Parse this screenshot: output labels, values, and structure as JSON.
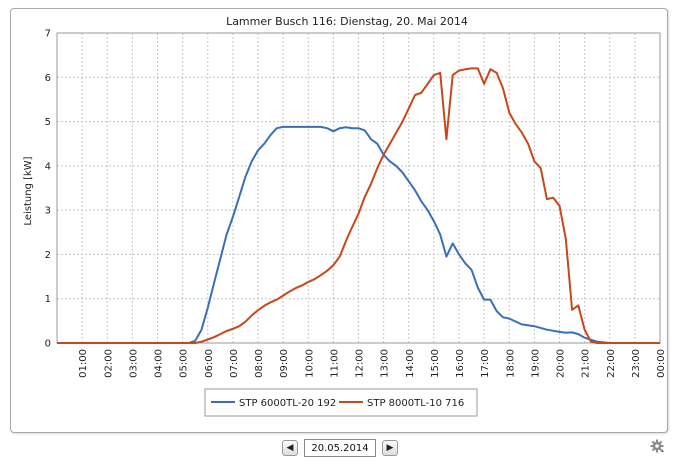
{
  "chart_data": {
    "type": "line",
    "title": "Lammer Busch 116: Dienstag, 20. Mai 2014",
    "ylabel": "Leistung [kW]",
    "xlabel": "",
    "ylim": [
      0,
      7
    ],
    "yticks": [
      "0",
      "1",
      "2",
      "3",
      "4",
      "5",
      "6",
      "7"
    ],
    "xticks": [
      "01:00",
      "02:00",
      "03:00",
      "04:00",
      "05:00",
      "06:00",
      "07:00",
      "08:00",
      "09:00",
      "10:00",
      "11:00",
      "12:00",
      "13:00",
      "14:00",
      "15:00",
      "16:00",
      "17:00",
      "18:00",
      "19:00",
      "20:00",
      "21:00",
      "22:00",
      "23:00",
      "00:00"
    ],
    "x_range_hours": [
      0,
      24
    ],
    "grid": true,
    "legend_position": "bottom",
    "series": [
      {
        "name": "STP 6000TL-20 192",
        "color": "#3a6fb8",
        "x": [
          0,
          5.25,
          5.5,
          5.75,
          6,
          6.25,
          6.5,
          6.75,
          7,
          7.25,
          7.5,
          7.75,
          8,
          8.25,
          8.5,
          8.75,
          9,
          9.5,
          10,
          10.5,
          10.75,
          11,
          11.25,
          11.5,
          11.75,
          12,
          12.25,
          12.5,
          12.75,
          13,
          13.25,
          13.5,
          13.75,
          14,
          14.25,
          14.5,
          14.75,
          15,
          15.25,
          15.5,
          15.75,
          16,
          16.25,
          16.5,
          16.75,
          17,
          17.25,
          17.5,
          17.75,
          18,
          18.5,
          19,
          19.5,
          20,
          20.25,
          20.5,
          20.75,
          21,
          21.5,
          22,
          23,
          24
        ],
        "y": [
          0,
          0,
          0.05,
          0.3,
          0.8,
          1.35,
          1.9,
          2.45,
          2.85,
          3.3,
          3.75,
          4.1,
          4.35,
          4.5,
          4.7,
          4.85,
          4.88,
          4.88,
          4.88,
          4.88,
          4.85,
          4.78,
          4.85,
          4.87,
          4.85,
          4.85,
          4.8,
          4.6,
          4.5,
          4.25,
          4.1,
          4.0,
          3.85,
          3.65,
          3.45,
          3.2,
          3.0,
          2.75,
          2.45,
          1.95,
          2.25,
          2.0,
          1.8,
          1.65,
          1.25,
          0.98,
          0.98,
          0.72,
          0.58,
          0.55,
          0.42,
          0.38,
          0.3,
          0.25,
          0.23,
          0.24,
          0.2,
          0.12,
          0.03,
          0,
          0,
          0
        ]
      },
      {
        "name": "STP 8000TL-10 716",
        "color": "#c8471b",
        "x": [
          0,
          5.25,
          5.5,
          5.75,
          6,
          6.25,
          6.5,
          6.75,
          7,
          7.25,
          7.5,
          7.75,
          8,
          8.25,
          8.5,
          8.75,
          9,
          9.25,
          9.5,
          9.75,
          10,
          10.25,
          10.5,
          10.75,
          11,
          11.25,
          11.5,
          11.75,
          12,
          12.25,
          12.5,
          12.75,
          13,
          13.25,
          13.5,
          13.75,
          14,
          14.25,
          14.5,
          14.75,
          15,
          15.25,
          15.5,
          15.75,
          16,
          16.25,
          16.5,
          16.75,
          17,
          17.25,
          17.5,
          17.75,
          18,
          18.25,
          18.5,
          18.75,
          19,
          19.25,
          19.5,
          19.75,
          20,
          20.25,
          20.5,
          20.75,
          21,
          21.25,
          21.5,
          22,
          23,
          24
        ],
        "y": [
          0,
          0,
          0,
          0.03,
          0.08,
          0.13,
          0.2,
          0.27,
          0.32,
          0.38,
          0.48,
          0.62,
          0.74,
          0.84,
          0.92,
          0.98,
          1.07,
          1.16,
          1.24,
          1.3,
          1.38,
          1.44,
          1.53,
          1.63,
          1.76,
          1.95,
          2.3,
          2.62,
          2.92,
          3.3,
          3.6,
          3.95,
          4.25,
          4.5,
          4.75,
          5.0,
          5.3,
          5.6,
          5.65,
          5.85,
          6.05,
          6.1,
          4.6,
          6.05,
          6.15,
          6.18,
          6.2,
          6.2,
          5.85,
          6.18,
          6.1,
          5.75,
          5.2,
          4.95,
          4.75,
          4.5,
          4.1,
          3.95,
          3.25,
          3.28,
          3.1,
          2.35,
          0.75,
          0.85,
          0.3,
          0.03,
          0,
          0,
          0,
          0
        ]
      }
    ]
  },
  "legend": {
    "items": [
      {
        "label": "STP 6000TL-20 192",
        "color": "#3a6fb8"
      },
      {
        "label": "STP 8000TL-10 716",
        "color": "#c8471b"
      }
    ]
  },
  "navigation": {
    "prev_icon": "left-triangle",
    "next_icon": "right-triangle",
    "date_value": "20.05.2014"
  },
  "settings_icon": "gear-icon"
}
